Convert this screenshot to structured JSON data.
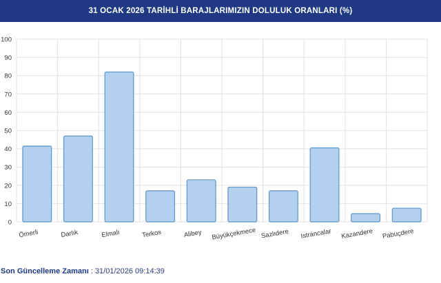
{
  "header": {
    "title": "31 OCAK 2026 TARİHLİ BARAJLARIMIZIN DOLULUK ORANLARI (%)"
  },
  "chart_data": {
    "type": "bar",
    "title": "31 OCAK 2026 TARİHLİ BARAJLARIMIZIN DOLULUK ORANLARI (%)",
    "categories": [
      "Ömerli",
      "Darlık",
      "Elmalı",
      "Terkos",
      "Alibey",
      "Büyükçekmece",
      "Sazlıdere",
      "Istrancalar",
      "Kazandere",
      "Pabuçdere"
    ],
    "values": [
      41.5,
      47,
      82,
      17,
      23,
      19,
      17,
      40.5,
      4.5,
      7.5
    ],
    "ylim": [
      0,
      100
    ],
    "yticks": [
      0,
      10,
      20,
      30,
      40,
      50,
      60,
      70,
      80,
      90,
      100
    ],
    "grid": true,
    "bar_color": "#b3d1ee",
    "bar_stroke": "#5b95c8"
  },
  "footer": {
    "label": "Son Güncelleme Zamanı",
    "separator": " : ",
    "value": "31/01/2026 09:14:39"
  },
  "colors": {
    "header_bg": "#1f3a82",
    "grid": "#e2e2e2"
  }
}
